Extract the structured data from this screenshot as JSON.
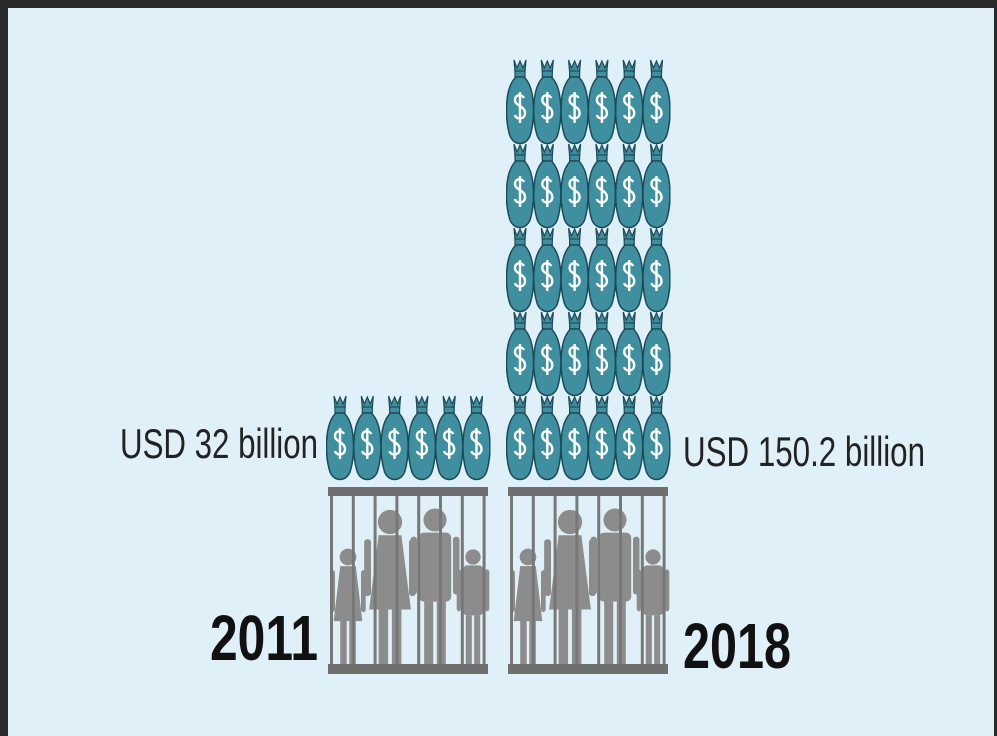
{
  "panels": [
    {
      "year": "2011",
      "amount": "USD 32 billion"
    },
    {
      "year": "2018",
      "amount": "USD 150.2 billion"
    }
  ]
}
